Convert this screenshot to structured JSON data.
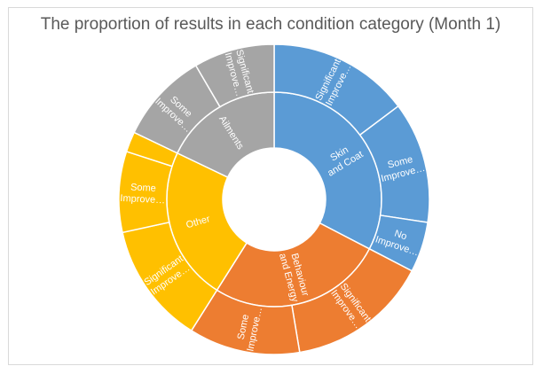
{
  "chart_data": {
    "type": "sunburst",
    "title": "The proportion of results in each condition category (Month 1)",
    "categories": [
      {
        "name": "Skin and Coat",
        "color": "#5b9bd5",
        "children": [
          {
            "name": "Significant Improve…",
            "value": 14
          },
          {
            "name": "Some Improve…",
            "value": 12
          },
          {
            "name": "No Improve…",
            "value": 5
          }
        ]
      },
      {
        "name": "Behaviour and Energy",
        "color": "#ed7d31",
        "children": [
          {
            "name": "Significant Improve…",
            "value": 14
          },
          {
            "name": "Some Improve…",
            "value": 11
          }
        ]
      },
      {
        "name": "Other",
        "color": "#ffc000",
        "children": [
          {
            "name": "Significant Improve…",
            "value": 12
          },
          {
            "name": "Some Improve…",
            "value": 8
          },
          {
            "name": "",
            "value": 2
          }
        ]
      },
      {
        "name": "Ailments",
        "color": "#a5a5a5",
        "children": [
          {
            "name": "Some Improve…",
            "value": 9
          },
          {
            "name": "Significant Improve…",
            "value": 8
          }
        ]
      }
    ]
  }
}
